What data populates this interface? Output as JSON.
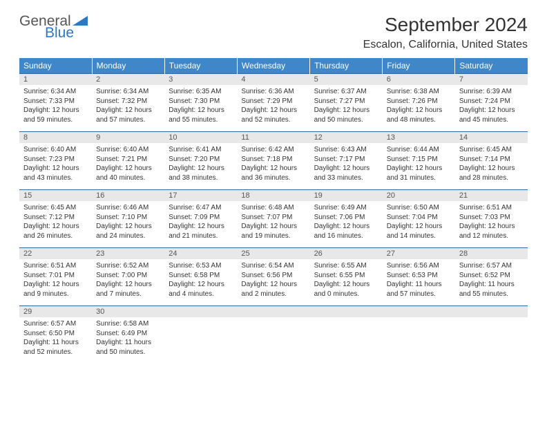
{
  "logo": {
    "text1": "General",
    "text2": "Blue"
  },
  "title": {
    "month": "September 2024",
    "location": "Escalon, California, United States"
  },
  "weekdays": [
    "Sunday",
    "Monday",
    "Tuesday",
    "Wednesday",
    "Thursday",
    "Friday",
    "Saturday"
  ],
  "colors": {
    "header_bg": "#3f87c9",
    "header_text": "#ffffff",
    "daynum_bg": "#e8e8e8",
    "sep_line": "#2b6aa3",
    "body_text": "#333333",
    "logo_blue": "#2b78c5"
  },
  "weeks": [
    [
      {
        "n": "1",
        "sr": "Sunrise: 6:34 AM",
        "ss": "Sunset: 7:33 PM",
        "d1": "Daylight: 12 hours",
        "d2": "and 59 minutes."
      },
      {
        "n": "2",
        "sr": "Sunrise: 6:34 AM",
        "ss": "Sunset: 7:32 PM",
        "d1": "Daylight: 12 hours",
        "d2": "and 57 minutes."
      },
      {
        "n": "3",
        "sr": "Sunrise: 6:35 AM",
        "ss": "Sunset: 7:30 PM",
        "d1": "Daylight: 12 hours",
        "d2": "and 55 minutes."
      },
      {
        "n": "4",
        "sr": "Sunrise: 6:36 AM",
        "ss": "Sunset: 7:29 PM",
        "d1": "Daylight: 12 hours",
        "d2": "and 52 minutes."
      },
      {
        "n": "5",
        "sr": "Sunrise: 6:37 AM",
        "ss": "Sunset: 7:27 PM",
        "d1": "Daylight: 12 hours",
        "d2": "and 50 minutes."
      },
      {
        "n": "6",
        "sr": "Sunrise: 6:38 AM",
        "ss": "Sunset: 7:26 PM",
        "d1": "Daylight: 12 hours",
        "d2": "and 48 minutes."
      },
      {
        "n": "7",
        "sr": "Sunrise: 6:39 AM",
        "ss": "Sunset: 7:24 PM",
        "d1": "Daylight: 12 hours",
        "d2": "and 45 minutes."
      }
    ],
    [
      {
        "n": "8",
        "sr": "Sunrise: 6:40 AM",
        "ss": "Sunset: 7:23 PM",
        "d1": "Daylight: 12 hours",
        "d2": "and 43 minutes."
      },
      {
        "n": "9",
        "sr": "Sunrise: 6:40 AM",
        "ss": "Sunset: 7:21 PM",
        "d1": "Daylight: 12 hours",
        "d2": "and 40 minutes."
      },
      {
        "n": "10",
        "sr": "Sunrise: 6:41 AM",
        "ss": "Sunset: 7:20 PM",
        "d1": "Daylight: 12 hours",
        "d2": "and 38 minutes."
      },
      {
        "n": "11",
        "sr": "Sunrise: 6:42 AM",
        "ss": "Sunset: 7:18 PM",
        "d1": "Daylight: 12 hours",
        "d2": "and 36 minutes."
      },
      {
        "n": "12",
        "sr": "Sunrise: 6:43 AM",
        "ss": "Sunset: 7:17 PM",
        "d1": "Daylight: 12 hours",
        "d2": "and 33 minutes."
      },
      {
        "n": "13",
        "sr": "Sunrise: 6:44 AM",
        "ss": "Sunset: 7:15 PM",
        "d1": "Daylight: 12 hours",
        "d2": "and 31 minutes."
      },
      {
        "n": "14",
        "sr": "Sunrise: 6:45 AM",
        "ss": "Sunset: 7:14 PM",
        "d1": "Daylight: 12 hours",
        "d2": "and 28 minutes."
      }
    ],
    [
      {
        "n": "15",
        "sr": "Sunrise: 6:45 AM",
        "ss": "Sunset: 7:12 PM",
        "d1": "Daylight: 12 hours",
        "d2": "and 26 minutes."
      },
      {
        "n": "16",
        "sr": "Sunrise: 6:46 AM",
        "ss": "Sunset: 7:10 PM",
        "d1": "Daylight: 12 hours",
        "d2": "and 24 minutes."
      },
      {
        "n": "17",
        "sr": "Sunrise: 6:47 AM",
        "ss": "Sunset: 7:09 PM",
        "d1": "Daylight: 12 hours",
        "d2": "and 21 minutes."
      },
      {
        "n": "18",
        "sr": "Sunrise: 6:48 AM",
        "ss": "Sunset: 7:07 PM",
        "d1": "Daylight: 12 hours",
        "d2": "and 19 minutes."
      },
      {
        "n": "19",
        "sr": "Sunrise: 6:49 AM",
        "ss": "Sunset: 7:06 PM",
        "d1": "Daylight: 12 hours",
        "d2": "and 16 minutes."
      },
      {
        "n": "20",
        "sr": "Sunrise: 6:50 AM",
        "ss": "Sunset: 7:04 PM",
        "d1": "Daylight: 12 hours",
        "d2": "and 14 minutes."
      },
      {
        "n": "21",
        "sr": "Sunrise: 6:51 AM",
        "ss": "Sunset: 7:03 PM",
        "d1": "Daylight: 12 hours",
        "d2": "and 12 minutes."
      }
    ],
    [
      {
        "n": "22",
        "sr": "Sunrise: 6:51 AM",
        "ss": "Sunset: 7:01 PM",
        "d1": "Daylight: 12 hours",
        "d2": "and 9 minutes."
      },
      {
        "n": "23",
        "sr": "Sunrise: 6:52 AM",
        "ss": "Sunset: 7:00 PM",
        "d1": "Daylight: 12 hours",
        "d2": "and 7 minutes."
      },
      {
        "n": "24",
        "sr": "Sunrise: 6:53 AM",
        "ss": "Sunset: 6:58 PM",
        "d1": "Daylight: 12 hours",
        "d2": "and 4 minutes."
      },
      {
        "n": "25",
        "sr": "Sunrise: 6:54 AM",
        "ss": "Sunset: 6:56 PM",
        "d1": "Daylight: 12 hours",
        "d2": "and 2 minutes."
      },
      {
        "n": "26",
        "sr": "Sunrise: 6:55 AM",
        "ss": "Sunset: 6:55 PM",
        "d1": "Daylight: 12 hours",
        "d2": "and 0 minutes."
      },
      {
        "n": "27",
        "sr": "Sunrise: 6:56 AM",
        "ss": "Sunset: 6:53 PM",
        "d1": "Daylight: 11 hours",
        "d2": "and 57 minutes."
      },
      {
        "n": "28",
        "sr": "Sunrise: 6:57 AM",
        "ss": "Sunset: 6:52 PM",
        "d1": "Daylight: 11 hours",
        "d2": "and 55 minutes."
      }
    ],
    [
      {
        "n": "29",
        "sr": "Sunrise: 6:57 AM",
        "ss": "Sunset: 6:50 PM",
        "d1": "Daylight: 11 hours",
        "d2": "and 52 minutes."
      },
      {
        "n": "30",
        "sr": "Sunrise: 6:58 AM",
        "ss": "Sunset: 6:49 PM",
        "d1": "Daylight: 11 hours",
        "d2": "and 50 minutes."
      },
      null,
      null,
      null,
      null,
      null
    ]
  ]
}
